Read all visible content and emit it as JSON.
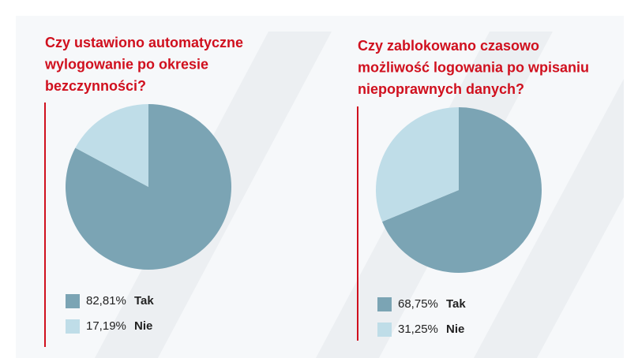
{
  "chart_data": [
    {
      "type": "pie",
      "title": "Czy ustawiono automatyczne wylogowanie po okresie bezczynności?",
      "title_lines": [
        "Czy ustawiono automatyczne",
        "wylogowanie po okresie",
        "bezczynności?"
      ],
      "categories": [
        "Tak",
        "Nie"
      ],
      "values": [
        82.81,
        17.19
      ],
      "value_labels": [
        "82,81%",
        "17,19%"
      ],
      "colors": [
        "#7ba4b4",
        "#bfdde8"
      ]
    },
    {
      "type": "pie",
      "title": "Czy zablokowano czasowo możliwość logowania po wpisaniu niepoprawnych danych?",
      "title_lines": [
        "Czy zablokowano czasowo",
        "możliwość logowania po wpisaniu",
        "niepoprawnych danych?"
      ],
      "categories": [
        "Tak",
        "Nie"
      ],
      "values": [
        68.75,
        31.25
      ],
      "value_labels": [
        "68,75%",
        "31,25%"
      ],
      "colors": [
        "#7ba4b4",
        "#bfdde8"
      ]
    }
  ]
}
